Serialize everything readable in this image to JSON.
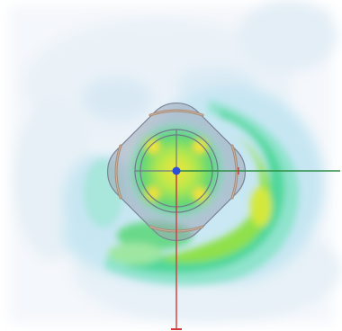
{
  "viewport": {
    "background": "#ffffff",
    "heatmap_palette": [
      "#e9f2f8",
      "#cfe6f3",
      "#a8e7e8",
      "#5fd9b6",
      "#2fd07f",
      "#8ee64a",
      "#d8ea30",
      "#f0e23a"
    ],
    "body_fill": "#9aa4b6",
    "axis_x_color": "#2f8f46",
    "axis_y_color": "#d23a3a",
    "origin_color": "#2b4fd8",
    "icons": [
      "origin-marker-icon",
      "x-axis-icon",
      "y-axis-icon"
    ]
  }
}
